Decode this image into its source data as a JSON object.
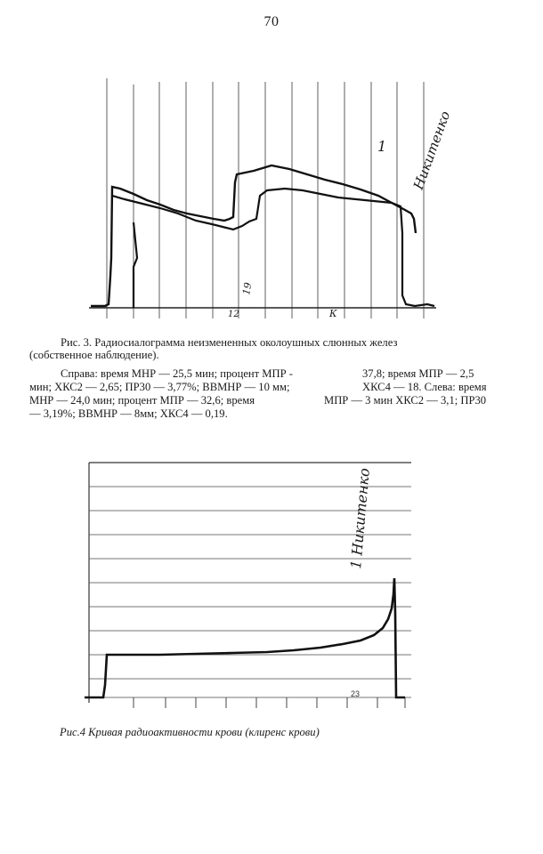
{
  "page": {
    "number": "70"
  },
  "figure3": {
    "caption_line1": "Рис. 3. Радиосиалограмма неизмененных околоушных слюнных желез",
    "caption_line2": "(собственное наблюдение).",
    "details": {
      "l1a": "Справа: время МНР — 25,5 мин; процент МПР -",
      "l1b": "37,8; время МПР — 2,5",
      "l2a": "мин; ХКС2 — 2,65; ПР30 — 3,77%; ВВМНР — 10 мм;",
      "l2b": "ХКС4 — 18. Слева: время",
      "l3a": "МНР — 24,0 мин; процент МПР — 32,6; время",
      "l3b": "МПР — 3 мин ХКС2 — 3,1; ПР30",
      "l4a": "— 3,19%; ВВМНР — 8мм; ХКС4 — 0,19."
    },
    "annotations": {
      "signature": "Никитенко",
      "curve_mark": "1",
      "axis_marks": [
        "12",
        "19",
        "К"
      ]
    }
  },
  "figure4": {
    "caption": "Рис.4 Кривая радиоактивности крови (клиренс крови)",
    "annotations": {
      "signature": "1 Никитенко",
      "axis_marks": [
        "23"
      ]
    }
  }
}
